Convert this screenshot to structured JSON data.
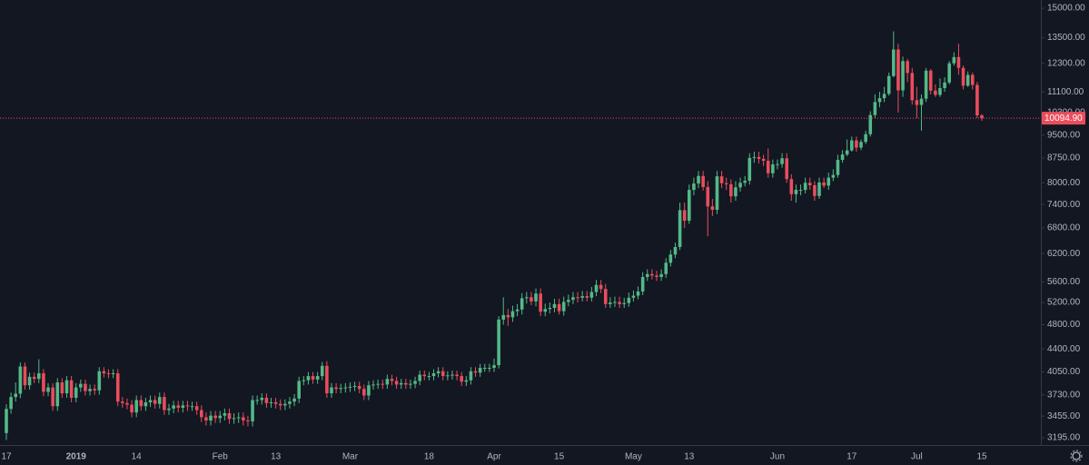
{
  "chart_data": {
    "type": "candlestick",
    "categories": [
      "17",
      null,
      null,
      null,
      null,
      null,
      null,
      null,
      null,
      null,
      null,
      null,
      null,
      null,
      null,
      "2019",
      null,
      null,
      null,
      null,
      null,
      null,
      null,
      null,
      null,
      null,
      null,
      null,
      "14",
      null,
      null,
      null,
      null,
      null,
      null,
      null,
      null,
      null,
      null,
      null,
      null,
      null,
      null,
      null,
      null,
      null,
      "Feb",
      null,
      null,
      null,
      null,
      null,
      null,
      null,
      null,
      null,
      null,
      null,
      "13",
      null,
      null,
      null,
      null,
      null,
      null,
      null,
      null,
      null,
      null,
      null,
      null,
      null,
      null,
      null,
      "Mar",
      null,
      null,
      null,
      null,
      null,
      null,
      null,
      null,
      null,
      null,
      null,
      null,
      null,
      null,
      null,
      null,
      "18",
      null,
      null,
      null,
      null,
      null,
      null,
      null,
      null,
      null,
      null,
      null,
      null,
      null,
      "Apr",
      null,
      null,
      null,
      null,
      null,
      null,
      null,
      null,
      null,
      null,
      null,
      null,
      null,
      "15",
      null,
      null,
      null,
      null,
      null,
      null,
      null,
      null,
      null,
      null,
      null,
      null,
      null,
      null,
      null,
      "May",
      null,
      null,
      null,
      null,
      null,
      null,
      null,
      null,
      null,
      null,
      null,
      "13",
      null,
      null,
      null,
      null,
      null,
      null,
      null,
      null,
      null,
      null,
      null,
      null,
      null,
      null,
      null,
      null,
      null,
      null,
      "Jun",
      null,
      null,
      null,
      null,
      null,
      null,
      null,
      null,
      null,
      null,
      null,
      null,
      null,
      null,
      null,
      "17",
      null,
      null,
      null,
      null,
      null,
      null,
      null,
      null,
      null,
      null,
      null,
      null,
      null,
      "Jul",
      null,
      null,
      null,
      null,
      null,
      null,
      null,
      null,
      null,
      null,
      null,
      null,
      null,
      "15"
    ],
    "open": [
      3250,
      3545,
      3700,
      3745,
      4130,
      3860,
      3980,
      3950,
      4030,
      3770,
      3830,
      3580,
      3900,
      3750,
      3930,
      3690,
      3830,
      3880,
      3780,
      3810,
      3790,
      4060,
      4030,
      4020,
      4030,
      3640,
      3620,
      3600,
      3500,
      3660,
      3580,
      3630,
      3660,
      3610,
      3700,
      3530,
      3550,
      3590,
      3560,
      3590,
      3580,
      3580,
      3530,
      3440,
      3400,
      3460,
      3430,
      3460,
      3490,
      3420,
      3430,
      3440,
      3400,
      3390,
      3660,
      3660,
      3690,
      3620,
      3630,
      3610,
      3590,
      3610,
      3640,
      3680,
      3920,
      3930,
      3990,
      3940,
      3990,
      4140,
      3750,
      3830,
      3810,
      3820,
      3830,
      3840,
      3850,
      3810,
      3720,
      3860,
      3870,
      3880,
      3870,
      3950,
      3920,
      3870,
      3890,
      3870,
      3880,
      3920,
      4010,
      3990,
      3990,
      4030,
      4060,
      3990,
      4000,
      4010,
      3990,
      3910,
      3930,
      4060,
      4040,
      4110,
      4110,
      4110,
      4150,
      4890,
      4970,
      4930,
      5040,
      5070,
      5280,
      5300,
      5220,
      5370,
      5030,
      5080,
      5100,
      5170,
      5040,
      5210,
      5250,
      5300,
      5290,
      5320,
      5290,
      5400,
      5540,
      5460,
      5170,
      5200,
      5210,
      5170,
      5190,
      5290,
      5330,
      5410,
      5700,
      5760,
      5730,
      5700,
      5760,
      6000,
      6180,
      6350,
      7250,
      6980,
      7800,
      7980,
      8200,
      7880,
      7350,
      7260,
      8190,
      7990,
      7960,
      7620,
      7870,
      8000,
      8060,
      8750,
      8780,
      8720,
      8660,
      8280,
      8550,
      8560,
      8740,
      8110,
      7680,
      7800,
      7800,
      8000,
      7930,
      7630,
      8010,
      7920,
      8150,
      8230,
      8690,
      8860,
      8990,
      9320,
      9080,
      9270,
      9530,
      10210,
      10700,
      10850,
      11020,
      11750,
      12930,
      11160,
      12400,
      11880,
      10770,
      10590,
      10830,
      11980,
      11150,
      10980,
      11250,
      11480,
      12300,
      12580,
      12100,
      11350,
      11800,
      11380,
      10200
    ],
    "high": [
      3605,
      3760,
      3900,
      4190,
      4190,
      4040,
      4040,
      4240,
      4090,
      3890,
      3890,
      3960,
      3960,
      3990,
      3990,
      3890,
      3940,
      3940,
      3870,
      3870,
      4120,
      4120,
      4090,
      4090,
      4090,
      3700,
      3680,
      3660,
      3720,
      3720,
      3690,
      3720,
      3720,
      3760,
      3760,
      3610,
      3650,
      3650,
      3650,
      3650,
      3640,
      3640,
      3590,
      3500,
      3520,
      3520,
      3520,
      3550,
      3550,
      3490,
      3500,
      3500,
      3460,
      3720,
      3720,
      3750,
      3750,
      3690,
      3690,
      3670,
      3670,
      3700,
      3740,
      3980,
      3990,
      4050,
      4050,
      4050,
      4200,
      4210,
      3890,
      3890,
      3880,
      3890,
      3900,
      3910,
      3910,
      3870,
      3920,
      3930,
      3940,
      3940,
      4010,
      4010,
      3980,
      3950,
      3950,
      3940,
      3980,
      4070,
      4070,
      4050,
      4090,
      4120,
      4120,
      4060,
      4070,
      4070,
      4050,
      3990,
      4120,
      4120,
      4170,
      4170,
      4170,
      4250,
      4950,
      5300,
      5080,
      5140,
      5170,
      5380,
      5400,
      5400,
      5470,
      5470,
      5180,
      5200,
      5270,
      5270,
      5310,
      5350,
      5400,
      5400,
      5420,
      5420,
      5500,
      5640,
      5640,
      5560,
      5300,
      5310,
      5310,
      5290,
      5390,
      5430,
      5510,
      5800,
      5860,
      5860,
      5830,
      5860,
      6100,
      6280,
      6450,
      7450,
      7450,
      7950,
      8150,
      8350,
      8350,
      8050,
      7550,
      8350,
      8350,
      8150,
      8100,
      8050,
      8150,
      8200,
      8900,
      8950,
      8950,
      8850,
      9050,
      8700,
      8700,
      8900,
      8900,
      8250,
      7950,
      7950,
      8150,
      8150,
      8050,
      8150,
      8150,
      8300,
      8400,
      8850,
      9000,
      9350,
      9450,
      9450,
      9350,
      9650,
      10350,
      11000,
      11100,
      11300,
      11900,
      13800,
      13200,
      12600,
      12500,
      12100,
      11300,
      11000,
      12100,
      12050,
      11400,
      11650,
      11700,
      12400,
      12800,
      13200,
      12200,
      11950,
      11900,
      11500,
      10250
    ],
    "low": [
      3170,
      3485,
      3640,
      3685,
      3800,
      3800,
      3890,
      3890,
      3710,
      3710,
      3520,
      3520,
      3690,
      3690,
      3630,
      3630,
      3770,
      3720,
      3720,
      3730,
      3730,
      3970,
      3960,
      3960,
      3580,
      3560,
      3540,
      3440,
      3440,
      3520,
      3520,
      3570,
      3550,
      3550,
      3470,
      3470,
      3490,
      3500,
      3500,
      3520,
      3520,
      3470,
      3380,
      3340,
      3340,
      3370,
      3370,
      3400,
      3360,
      3360,
      3370,
      3340,
      3330,
      3330,
      3600,
      3600,
      3560,
      3560,
      3550,
      3530,
      3530,
      3550,
      3580,
      3620,
      3860,
      3870,
      3880,
      3880,
      3930,
      3690,
      3690,
      3750,
      3750,
      3760,
      3770,
      3780,
      3750,
      3660,
      3660,
      3800,
      3810,
      3810,
      3810,
      3860,
      3810,
      3810,
      3810,
      3810,
      3820,
      3860,
      3930,
      3930,
      3930,
      3970,
      3930,
      3930,
      3940,
      3930,
      3850,
      3850,
      3870,
      3980,
      3980,
      4050,
      4050,
      4050,
      4100,
      4800,
      4780,
      4850,
      4950,
      4980,
      5180,
      5150,
      5130,
      4950,
      4950,
      5000,
      5020,
      4980,
      4960,
      5130,
      5170,
      5200,
      5220,
      5220,
      5220,
      5320,
      5380,
      5100,
      5100,
      5120,
      5100,
      5100,
      5120,
      5220,
      5260,
      5340,
      5620,
      5650,
      5620,
      5620,
      5680,
      5920,
      6100,
      6280,
      6800,
      6900,
      7650,
      7850,
      7780,
      6600,
      7100,
      7150,
      7850,
      7800,
      7450,
      7500,
      7750,
      7900,
      7950,
      8600,
      8580,
      8500,
      8150,
      8150,
      8400,
      8450,
      8000,
      7500,
      7450,
      7650,
      7700,
      7800,
      7500,
      7550,
      7850,
      7800,
      8050,
      8150,
      8600,
      8800,
      8950,
      8950,
      9000,
      9200,
      9450,
      10100,
      10500,
      10700,
      10950,
      11700,
      10300,
      10900,
      11500,
      10600,
      10100,
      9650,
      10700,
      11000,
      10900,
      10900,
      11100,
      11400,
      12200,
      11800,
      11200,
      11300,
      11200,
      10100,
      10000
    ],
    "close": [
      3545,
      3700,
      3745,
      4130,
      3860,
      3980,
      3950,
      4030,
      3770,
      3830,
      3580,
      3900,
      3750,
      3930,
      3690,
      3830,
      3880,
      3780,
      3810,
      3790,
      4060,
      4030,
      4020,
      4030,
      3640,
      3620,
      3600,
      3500,
      3660,
      3580,
      3630,
      3660,
      3610,
      3700,
      3530,
      3550,
      3590,
      3560,
      3590,
      3580,
      3580,
      3530,
      3440,
      3400,
      3460,
      3430,
      3460,
      3490,
      3420,
      3430,
      3440,
      3400,
      3390,
      3660,
      3660,
      3690,
      3620,
      3630,
      3610,
      3590,
      3610,
      3640,
      3680,
      3920,
      3930,
      3990,
      3940,
      3990,
      4140,
      3750,
      3830,
      3810,
      3820,
      3830,
      3840,
      3850,
      3810,
      3720,
      3860,
      3870,
      3880,
      3870,
      3950,
      3920,
      3870,
      3890,
      3870,
      3880,
      3920,
      4010,
      3990,
      3990,
      4030,
      4060,
      3990,
      4000,
      4010,
      3990,
      3910,
      3930,
      4060,
      4040,
      4110,
      4110,
      4110,
      4150,
      4890,
      4970,
      4930,
      5040,
      5070,
      5280,
      5300,
      5220,
      5370,
      5030,
      5080,
      5100,
      5170,
      5040,
      5210,
      5250,
      5300,
      5290,
      5320,
      5290,
      5400,
      5540,
      5460,
      5170,
      5200,
      5210,
      5170,
      5190,
      5290,
      5330,
      5410,
      5700,
      5760,
      5730,
      5700,
      5760,
      6000,
      6180,
      6350,
      7250,
      6980,
      7800,
      7980,
      8200,
      7880,
      7350,
      7260,
      8190,
      7990,
      7960,
      7620,
      7870,
      8000,
      8060,
      8750,
      8780,
      8720,
      8660,
      8280,
      8550,
      8560,
      8740,
      8110,
      7680,
      7800,
      7800,
      8000,
      7930,
      7630,
      8010,
      7920,
      8150,
      8230,
      8690,
      8860,
      8990,
      9320,
      9080,
      9270,
      9530,
      10210,
      10700,
      10850,
      11020,
      11750,
      12930,
      11160,
      12400,
      11880,
      10770,
      10590,
      10830,
      11980,
      11150,
      10980,
      11250,
      11480,
      12300,
      12580,
      12100,
      11350,
      11800,
      11380,
      10200,
      10094.9
    ],
    "last_price_label": "10094.90",
    "up_color": "#53b987",
    "down_color": "#eb4d5c",
    "log_scale": true,
    "ylim": [
      3113,
      15450
    ],
    "yticks": [
      {
        "value": 3195,
        "label": "3195.00"
      },
      {
        "value": 3455,
        "label": "3455.00"
      },
      {
        "value": 3730,
        "label": "3730.00"
      },
      {
        "value": 4050,
        "label": "4050.00"
      },
      {
        "value": 4400,
        "label": "4400.00"
      },
      {
        "value": 4800,
        "label": "4800.00"
      },
      {
        "value": 5200,
        "label": "5200.00"
      },
      {
        "value": 5600,
        "label": "5600.00"
      },
      {
        "value": 6200,
        "label": "6200.00"
      },
      {
        "value": 6800,
        "label": "6800.00"
      },
      {
        "value": 7400,
        "label": "7400.00"
      },
      {
        "value": 8000,
        "label": "8000.00"
      },
      {
        "value": 8750,
        "label": "8750.00"
      },
      {
        "value": 9500,
        "label": "9500.00"
      },
      {
        "value": 10300,
        "label": "10300.00"
      },
      {
        "value": 11100,
        "label": "11100.00"
      },
      {
        "value": 12300,
        "label": "12300.00"
      },
      {
        "value": 13500,
        "label": "13500.00"
      },
      {
        "value": 15000,
        "label": "15000.00"
      }
    ]
  }
}
